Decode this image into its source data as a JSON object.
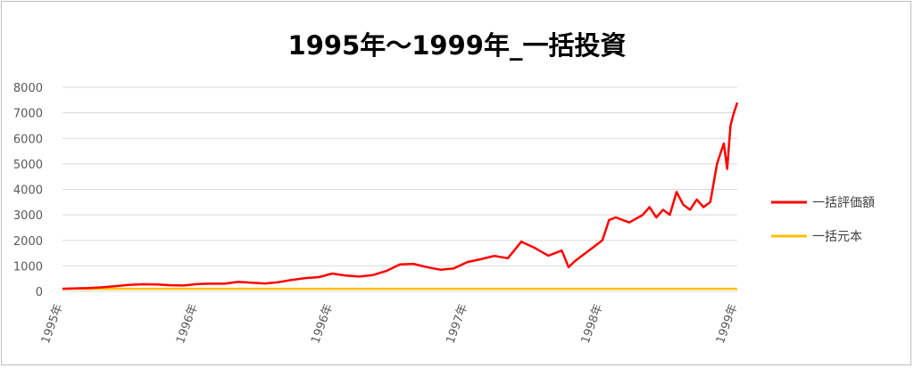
{
  "chart_data": {
    "type": "line",
    "title": "1995年～1999年_一括投資",
    "xlabel": "",
    "ylabel": "",
    "ylim": [
      0,
      8000
    ],
    "y_ticks": [
      0,
      1000,
      2000,
      3000,
      4000,
      5000,
      6000,
      7000,
      8000
    ],
    "x_tick_labels": [
      "1995年",
      "1996年",
      "1996年",
      "1997年",
      "1998年",
      "1999年"
    ],
    "x_tick_positions": [
      0,
      0.2,
      0.4,
      0.6,
      0.8,
      1.0
    ],
    "grid": true,
    "legend_position": "right",
    "series": [
      {
        "name": "一括評価額",
        "color": "#ff0000",
        "x": [
          0,
          0.02,
          0.04,
          0.06,
          0.08,
          0.1,
          0.12,
          0.14,
          0.16,
          0.18,
          0.2,
          0.22,
          0.24,
          0.26,
          0.28,
          0.3,
          0.32,
          0.34,
          0.36,
          0.38,
          0.4,
          0.42,
          0.44,
          0.46,
          0.48,
          0.5,
          0.52,
          0.54,
          0.56,
          0.58,
          0.6,
          0.62,
          0.64,
          0.66,
          0.68,
          0.7,
          0.72,
          0.74,
          0.75,
          0.76,
          0.78,
          0.8,
          0.81,
          0.82,
          0.84,
          0.86,
          0.87,
          0.88,
          0.89,
          0.9,
          0.91,
          0.92,
          0.93,
          0.94,
          0.95,
          0.96,
          0.97,
          0.98,
          0.985,
          0.99,
          0.995,
          1.0
        ],
        "values": [
          100,
          120,
          130,
          160,
          210,
          260,
          280,
          270,
          240,
          230,
          290,
          300,
          300,
          370,
          340,
          310,
          360,
          450,
          520,
          560,
          700,
          620,
          580,
          640,
          800,
          1060,
          1080,
          950,
          850,
          900,
          1150,
          1260,
          1390,
          1300,
          1950,
          1700,
          1400,
          1600,
          950,
          1200,
          1600,
          2000,
          2800,
          2900,
          2700,
          3000,
          3300,
          2900,
          3200,
          3000,
          3900,
          3400,
          3200,
          3600,
          3300,
          3500,
          5000,
          5800,
          4800,
          6500,
          7000,
          7400
        ]
      },
      {
        "name": "一括元本",
        "color": "#ffc000",
        "x": [
          0,
          1.0
        ],
        "values": [
          100,
          100
        ]
      }
    ]
  }
}
